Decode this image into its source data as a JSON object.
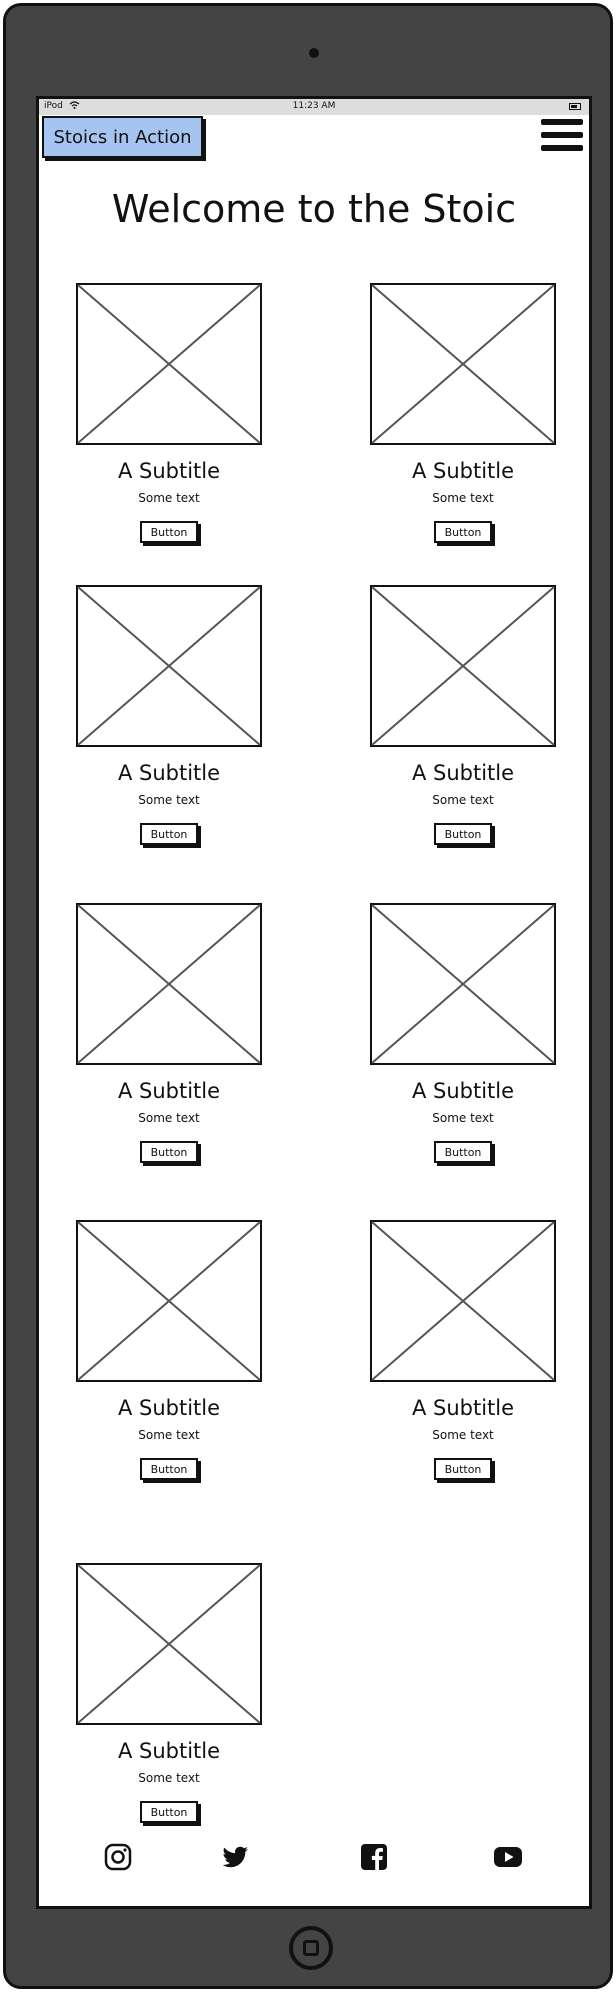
{
  "status_bar": {
    "device": "iPod",
    "time": "11:23 AM"
  },
  "header": {
    "brand": "Stoics in Action",
    "menu_icon": "hamburger-menu-icon"
  },
  "page": {
    "title": "Welcome to the Stoic"
  },
  "cards": [
    {
      "subtitle": "A Subtitle",
      "text": "Some text",
      "button": "Button"
    },
    {
      "subtitle": "A Subtitle",
      "text": "Some text",
      "button": "Button"
    },
    {
      "subtitle": "A Subtitle",
      "text": "Some text",
      "button": "Button"
    },
    {
      "subtitle": "A Subtitle",
      "text": "Some text",
      "button": "Button"
    },
    {
      "subtitle": "A Subtitle",
      "text": "Some text",
      "button": "Button"
    },
    {
      "subtitle": "A Subtitle",
      "text": "Some text",
      "button": "Button"
    },
    {
      "subtitle": "A Subtitle",
      "text": "Some text",
      "button": "Button"
    },
    {
      "subtitle": "A Subtitle",
      "text": "Some text",
      "button": "Button"
    },
    {
      "subtitle": "A Subtitle",
      "text": "Some text",
      "button": "Button"
    }
  ],
  "footer": {
    "icons": [
      "instagram-icon",
      "twitter-icon",
      "facebook-icon",
      "youtube-icon"
    ]
  },
  "colors": {
    "brand_bg": "#a6c4f0",
    "device_frame": "#444444",
    "ink": "#111111"
  }
}
